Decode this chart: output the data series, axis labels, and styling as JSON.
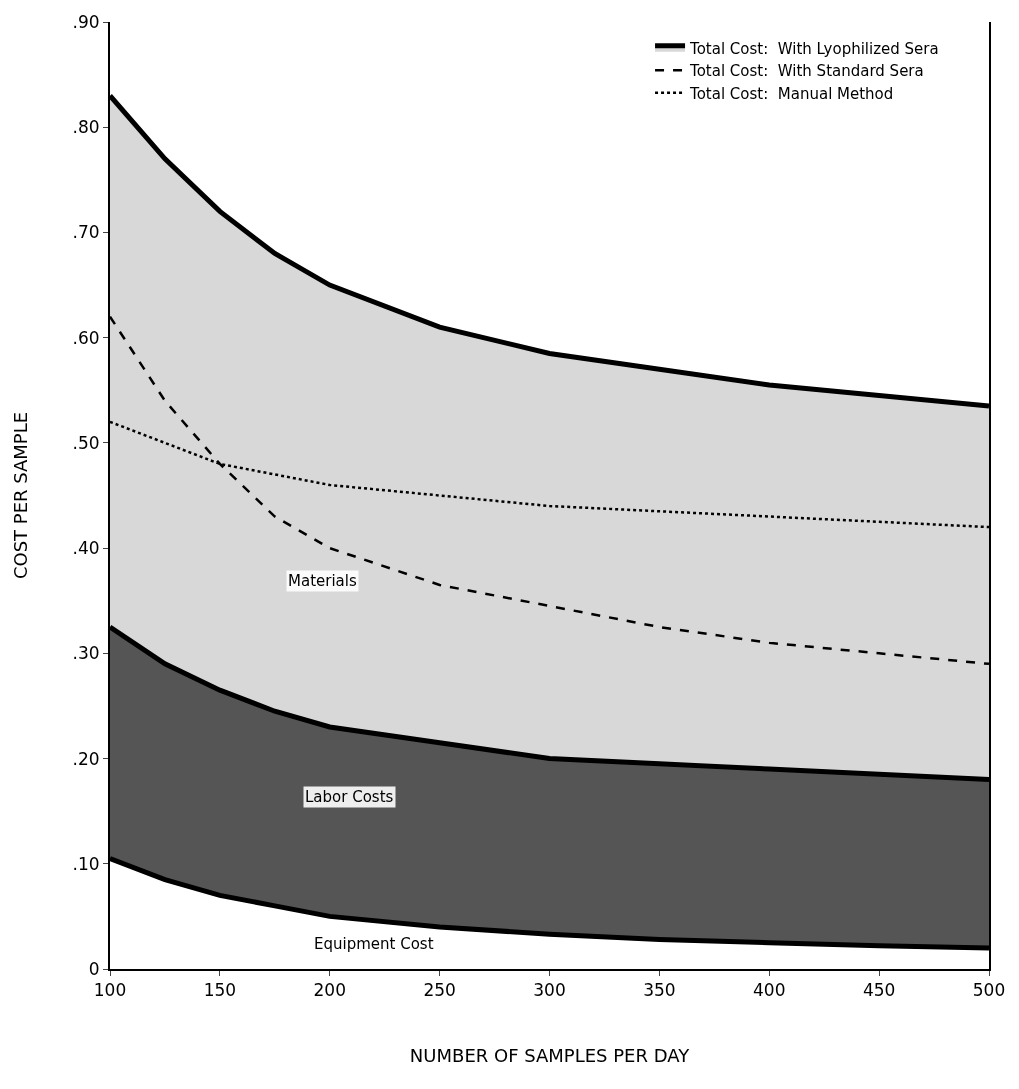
{
  "chart_data": {
    "type": "line",
    "xlabel": "NUMBER OF SAMPLES PER DAY",
    "ylabel": "COST PER SAMPLE",
    "x": [
      100,
      125,
      150,
      175,
      200,
      250,
      300,
      350,
      400,
      450,
      500
    ],
    "series": [
      {
        "name": "Total Cost:  Manual Method",
        "color": "#000000",
        "line_style": "dotted",
        "values": [
          0.52,
          0.5,
          0.48,
          0.47,
          0.46,
          0.45,
          0.44,
          0.435,
          0.43,
          0.425,
          0.42
        ]
      },
      {
        "name": "Total Cost:  With Standard Sera",
        "color": "#000000",
        "line_style": "dashed",
        "values": [
          0.62,
          0.54,
          0.48,
          0.43,
          0.4,
          0.365,
          0.345,
          0.325,
          0.31,
          0.3,
          0.29
        ]
      },
      {
        "color": "#000000",
        "line_style": "solid",
        "values": [
          0.105,
          0.085,
          0.07,
          0.06,
          0.05,
          0.04,
          0.033,
          0.028,
          0.025,
          0.022,
          0.02
        ]
      },
      {
        "type": "area",
        "color": "#555555",
        "line_style": "solid",
        "values": [
          0.325,
          0.29,
          0.265,
          0.245,
          0.23,
          0.215,
          0.2,
          0.195,
          0.19,
          0.185,
          0.18
        ]
      },
      {
        "type": "area",
        "name": "Total Cost:  With Lyophilized Sera",
        "color": "#d8d8d8",
        "line_style": "solid",
        "values": [
          0.83,
          0.77,
          0.72,
          0.68,
          0.65,
          0.61,
          0.585,
          0.57,
          0.555,
          0.545,
          0.535
        ]
      }
    ],
    "xlim": [
      100,
      500
    ],
    "xticks": [
      100,
      150,
      200,
      250,
      300,
      350,
      400,
      450,
      500
    ],
    "ylim": [
      0,
      0.9
    ],
    "yticks": [
      {
        "value": 0,
        "label": "0"
      },
      {
        "value": 0.1,
        "label": ".10"
      },
      {
        "value": 0.2,
        "label": ".20"
      },
      {
        "value": 0.3,
        "label": ".30"
      },
      {
        "value": 0.4,
        "label": ".40"
      },
      {
        "value": 0.5,
        "label": ".50"
      },
      {
        "value": 0.6,
        "label": ".60"
      },
      {
        "value": 0.7,
        "label": ".70"
      },
      {
        "value": 0.8,
        "label": ".80"
      },
      {
        "value": 0.9,
        "label": ".90"
      }
    ],
    "annotations": [
      "Materials",
      "Labor Costs",
      "Equipment Cost"
    ],
    "legend": "top right"
  }
}
